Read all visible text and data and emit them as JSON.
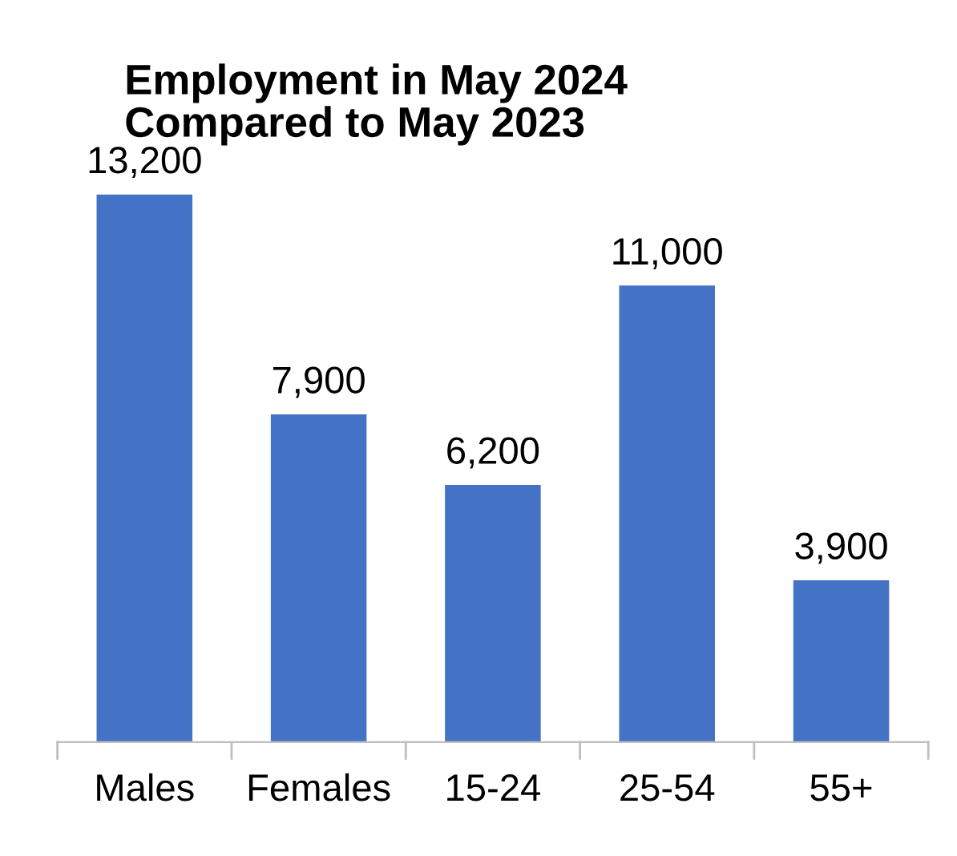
{
  "chart_data": {
    "type": "bar",
    "title": "Employment in May 2024\nCompared to May 2023",
    "categories": [
      "Males",
      "Females",
      "15-24",
      "25-54",
      "55+"
    ],
    "values": [
      13200,
      7900,
      6200,
      11000,
      3900
    ],
    "value_labels": [
      "13,200",
      "7,900",
      "6,200",
      "11,000",
      "3,900"
    ],
    "color": "#4472c4",
    "grid": false,
    "legend": false
  }
}
